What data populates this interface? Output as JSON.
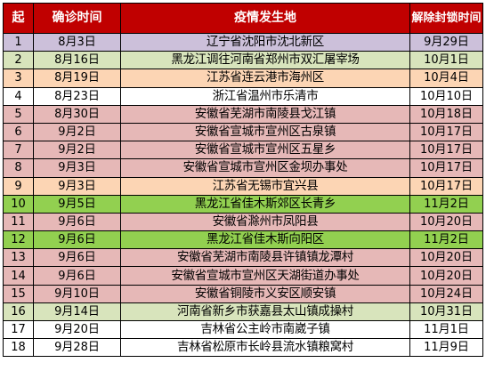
{
  "table": {
    "headers": {
      "index": "起",
      "date": "确诊时间",
      "location": "疫情发生地",
      "lifted": "解除封锁时间"
    },
    "colors": {
      "header_bg": "#c00000",
      "header_text": "#ffffff",
      "lavender": "#ccc0da",
      "light_green": "#d8e4bc",
      "peach": "#fcd5b4",
      "white": "#ffffff",
      "pink": "#e6b8b7",
      "green": "#92d050"
    },
    "rows": [
      {
        "index": "1",
        "date": "8月3日",
        "location": "辽宁省沈阳市沈北新区",
        "lifted": "9月29日",
        "bg": "lavender"
      },
      {
        "index": "2",
        "date": "8月16日",
        "location": "黑龙江调往河南省郑州市双汇屠宰场",
        "lifted": "10月1日",
        "bg": "light_green"
      },
      {
        "index": "3",
        "date": "8月19日",
        "location": "江苏省连云港市海州区",
        "lifted": "10月4日",
        "bg": "peach"
      },
      {
        "index": "4",
        "date": "8月23日",
        "location": "浙江省温州市乐清市",
        "lifted": "10月10日",
        "bg": "white"
      },
      {
        "index": "5",
        "date": "8月30日",
        "location": "安徽省芜湖市南陵县戈江镇",
        "lifted": "10月18日",
        "bg": "pink"
      },
      {
        "index": "6",
        "date": "9月2日",
        "location": "安徽省宣城市宣州区古泉镇",
        "lifted": "10月17日",
        "bg": "pink"
      },
      {
        "index": "7",
        "date": "9月2日",
        "location": "安徽省宣城市宣州区五星乡",
        "lifted": "10月17日",
        "bg": "pink"
      },
      {
        "index": "8",
        "date": "9月3日",
        "location": "安徽省宣城市宣州区金坝办事处",
        "lifted": "10月17日",
        "bg": "pink"
      },
      {
        "index": "9",
        "date": "9月3日",
        "location": "江苏省无锡市宜兴县",
        "lifted": "10月17日",
        "bg": "peach"
      },
      {
        "index": "10",
        "date": "9月5日",
        "location": "黑龙江省佳木斯郊区长青乡",
        "lifted": "11月2日",
        "bg": "green"
      },
      {
        "index": "11",
        "date": "9月6日",
        "location": "安徽省滁州市凤阳县",
        "lifted": "10月20日",
        "bg": "pink"
      },
      {
        "index": "12",
        "date": "9月6日",
        "location": "黑龙江省佳木斯向阳区",
        "lifted": "11月2日",
        "bg": "green"
      },
      {
        "index": "13",
        "date": "9月6日",
        "location": "安徽省芜湖市南陵县许镇镇龙潭村",
        "lifted": "10月20日",
        "bg": "pink"
      },
      {
        "index": "14",
        "date": "9月6日",
        "location": "安徽省宣城市宣州区天湖街道办事处",
        "lifted": "10月20日",
        "bg": "pink"
      },
      {
        "index": "15",
        "date": "9月10日",
        "location": "安徽省铜陵市义安区顺安镇",
        "lifted": "10月24日",
        "bg": "pink"
      },
      {
        "index": "16",
        "date": "9月14日",
        "location": "河南省新乡市获嘉县太山镇成操村",
        "lifted": "10月31日",
        "bg": "light_green"
      },
      {
        "index": "17",
        "date": "9月20日",
        "location": "吉林省公主岭市南崴子镇",
        "lifted": "11月1日",
        "bg": "white"
      },
      {
        "index": "18",
        "date": "9月28日",
        "location": "吉林省松原市长岭县流水镇粮窝村",
        "lifted": "11月9日",
        "bg": "white"
      }
    ]
  }
}
